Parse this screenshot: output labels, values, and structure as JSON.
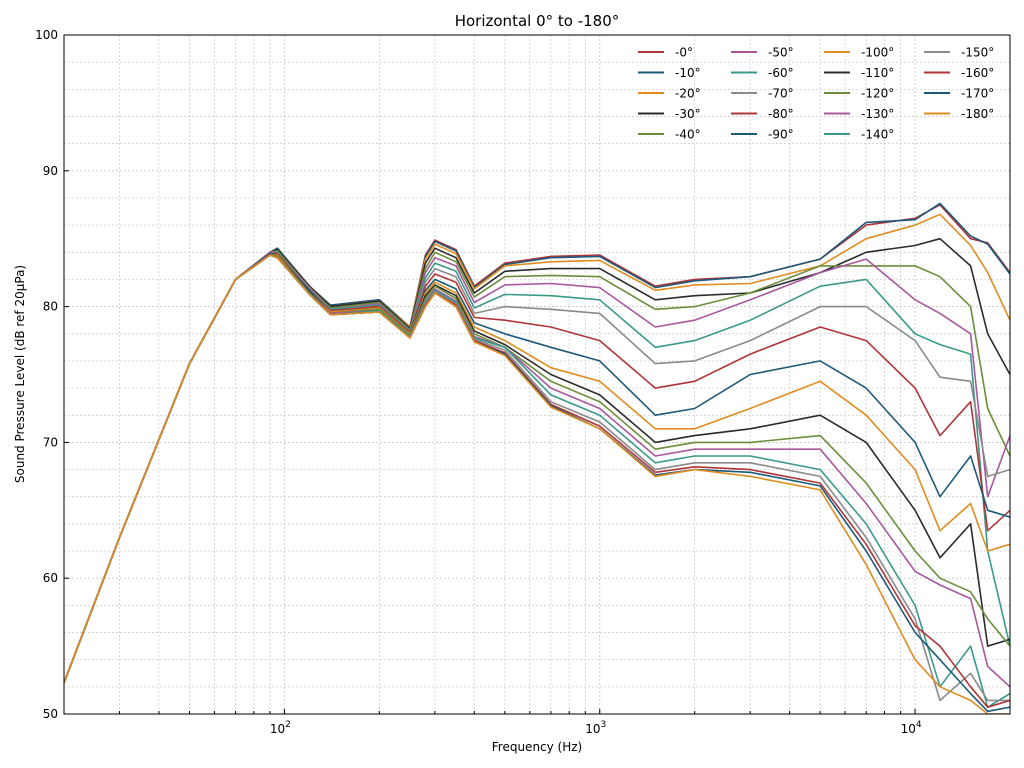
{
  "chart_data": {
    "type": "line",
    "title": "Horizontal 0° to -180°",
    "xlabel": "Frequency (Hz)",
    "ylabel": "Sound Pressure Level (dB ref 20µPa)",
    "xscale": "log",
    "xlim": [
      20,
      20000
    ],
    "ylim": [
      50,
      100
    ],
    "yticks": [
      50,
      60,
      70,
      80,
      90,
      100
    ],
    "xtick_labels": [
      {
        "value": 100,
        "base": "10",
        "exp": "2"
      },
      {
        "value": 1000,
        "base": "10",
        "exp": "3"
      },
      {
        "value": 10000,
        "base": "10",
        "exp": "4"
      }
    ],
    "grid": true,
    "legend": {
      "placement": "top-right",
      "columns": 4
    },
    "x": [
      20,
      30,
      50,
      70,
      90,
      95,
      120,
      140,
      200,
      250,
      280,
      300,
      350,
      400,
      500,
      700,
      1000,
      1500,
      2000,
      3000,
      5000,
      7000,
      10000,
      12000,
      15000,
      17000,
      20000
    ],
    "series": [
      {
        "name": "-0°",
        "color": "#b03538",
        "values": [
          52.3,
          63.0,
          75.8,
          82.0,
          84.0,
          84.3,
          81.5,
          80.1,
          80.5,
          78.5,
          83.8,
          84.9,
          84.2,
          81.5,
          83.2,
          83.7,
          83.8,
          81.5,
          82.0,
          82.2,
          83.5,
          86.0,
          86.5,
          87.5,
          85.0,
          84.7,
          82.5
        ]
      },
      {
        "name": "-10°",
        "color": "#1d5a7a",
        "values": [
          52.3,
          63.0,
          75.8,
          82.0,
          84.0,
          84.3,
          81.5,
          80.1,
          80.5,
          78.5,
          83.7,
          84.8,
          84.1,
          81.4,
          83.1,
          83.6,
          83.7,
          81.4,
          81.9,
          82.2,
          83.5,
          86.2,
          86.4,
          87.6,
          85.2,
          84.6,
          82.4
        ]
      },
      {
        "name": "-20°",
        "color": "#e08c1f",
        "values": [
          52.3,
          63.0,
          75.8,
          82.0,
          84.0,
          84.2,
          81.5,
          80.0,
          80.4,
          78.5,
          83.5,
          84.6,
          83.9,
          81.3,
          83.0,
          83.3,
          83.4,
          81.2,
          81.6,
          81.7,
          83.0,
          85.0,
          86.0,
          86.8,
          84.5,
          82.5,
          79.0
        ]
      },
      {
        "name": "-30°",
        "color": "#2b2b2b",
        "values": [
          52.3,
          63.0,
          75.8,
          82.0,
          84.0,
          84.2,
          81.5,
          80.0,
          80.4,
          78.4,
          83.2,
          84.3,
          83.6,
          81.0,
          82.6,
          82.8,
          82.8,
          80.5,
          80.8,
          81.0,
          82.5,
          84.0,
          84.5,
          85.0,
          83.0,
          78.0,
          75.0
        ]
      },
      {
        "name": "-40°",
        "color": "#6b8e3a",
        "values": [
          52.3,
          63.0,
          75.8,
          82.0,
          84.0,
          84.1,
          81.4,
          79.9,
          80.3,
          78.3,
          82.8,
          84.0,
          83.3,
          80.7,
          82.2,
          82.3,
          82.2,
          79.8,
          80.0,
          81.0,
          83.0,
          83.0,
          83.0,
          82.2,
          80.0,
          72.5,
          69.0
        ]
      },
      {
        "name": "-50°",
        "color": "#a9589e",
        "values": [
          52.3,
          63.0,
          75.8,
          82.0,
          84.0,
          84.0,
          81.4,
          79.8,
          80.2,
          78.2,
          82.5,
          83.6,
          83.0,
          80.3,
          81.6,
          81.7,
          81.4,
          78.5,
          79.0,
          80.5,
          82.5,
          83.5,
          80.5,
          79.5,
          78.0,
          66.0,
          70.5
        ]
      },
      {
        "name": "-60°",
        "color": "#3a9a8a",
        "values": [
          52.3,
          63.0,
          75.8,
          82.0,
          83.9,
          84.0,
          81.3,
          79.8,
          80.1,
          78.2,
          82.1,
          83.2,
          82.6,
          79.9,
          80.9,
          80.8,
          80.5,
          77.0,
          77.5,
          79.0,
          81.5,
          82.0,
          78.0,
          77.2,
          76.5,
          62.0,
          55.0
        ]
      },
      {
        "name": "-70°",
        "color": "#8a8a8a",
        "values": [
          52.3,
          63.0,
          75.8,
          82.0,
          83.9,
          83.9,
          81.3,
          79.7,
          80.0,
          78.1,
          81.8,
          82.8,
          82.2,
          79.5,
          80.0,
          79.8,
          79.5,
          75.8,
          76.0,
          77.5,
          80.0,
          80.0,
          77.5,
          74.8,
          74.5,
          67.5,
          68.0
        ]
      },
      {
        "name": "-80°",
        "color": "#b03538",
        "values": [
          52.3,
          63.0,
          75.8,
          82.0,
          83.9,
          83.9,
          81.2,
          79.7,
          80.0,
          78.1,
          81.5,
          82.4,
          81.8,
          79.2,
          79.0,
          78.5,
          77.5,
          74.0,
          74.5,
          76.5,
          78.5,
          77.5,
          74.0,
          70.5,
          73.0,
          63.5,
          65.0
        ]
      },
      {
        "name": "-90°",
        "color": "#1d5a7a",
        "values": [
          52.3,
          63.0,
          75.8,
          82.0,
          83.9,
          83.8,
          81.2,
          79.6,
          79.9,
          78.0,
          81.2,
          82.0,
          81.3,
          78.8,
          78.0,
          77.0,
          76.0,
          72.0,
          72.5,
          75.0,
          76.0,
          74.0,
          70.0,
          66.0,
          69.0,
          65.0,
          64.5
        ]
      },
      {
        "name": "-100°",
        "color": "#e08c1f",
        "values": [
          52.3,
          63.0,
          75.8,
          82.0,
          83.8,
          83.8,
          81.1,
          79.6,
          79.9,
          78.0,
          81.0,
          81.8,
          81.0,
          78.5,
          77.5,
          75.5,
          74.5,
          71.0,
          71.0,
          72.5,
          74.5,
          72.0,
          68.0,
          63.5,
          65.5,
          62.0,
          62.5
        ]
      },
      {
        "name": "-110°",
        "color": "#2b2b2b",
        "values": [
          52.3,
          63.0,
          75.8,
          82.0,
          83.8,
          83.7,
          81.1,
          79.5,
          79.8,
          77.9,
          80.8,
          81.6,
          80.8,
          78.2,
          77.2,
          75.0,
          73.5,
          70.0,
          70.5,
          71.0,
          72.0,
          70.0,
          65.0,
          61.5,
          64.0,
          55.0,
          55.5
        ]
      },
      {
        "name": "-120°",
        "color": "#6b8e3a",
        "values": [
          52.3,
          63.0,
          75.8,
          82.0,
          83.8,
          83.7,
          81.0,
          79.5,
          79.8,
          77.9,
          80.6,
          81.5,
          80.6,
          78.0,
          77.0,
          74.5,
          73.0,
          69.5,
          70.0,
          70.0,
          70.5,
          67.0,
          62.0,
          60.0,
          59.0,
          57.0,
          55.0
        ]
      },
      {
        "name": "-130°",
        "color": "#a9589e",
        "values": [
          52.3,
          63.0,
          75.8,
          82.0,
          83.8,
          83.6,
          81.0,
          79.5,
          79.7,
          77.8,
          80.4,
          81.3,
          80.4,
          77.8,
          77.0,
          74.0,
          72.5,
          69.0,
          69.5,
          69.5,
          69.5,
          65.5,
          60.5,
          59.5,
          58.5,
          53.5,
          52.0
        ]
      },
      {
        "name": "-140°",
        "color": "#3a9a8a",
        "values": [
          52.3,
          63.0,
          75.8,
          82.0,
          83.8,
          83.6,
          81.0,
          79.4,
          79.7,
          77.8,
          80.3,
          81.2,
          80.3,
          77.7,
          77.0,
          73.5,
          72.0,
          68.5,
          69.0,
          69.0,
          68.0,
          64.0,
          58.0,
          52.0,
          55.0,
          50.5,
          51.5
        ]
      },
      {
        "name": "-150°",
        "color": "#8a8a8a",
        "values": [
          52.3,
          63.0,
          75.8,
          82.0,
          83.8,
          83.6,
          80.9,
          79.4,
          79.6,
          77.7,
          80.2,
          81.1,
          80.2,
          77.6,
          76.8,
          73.0,
          71.5,
          68.0,
          68.5,
          68.5,
          67.5,
          63.0,
          57.0,
          51.0,
          53.0,
          51.0,
          51.0
        ]
      },
      {
        "name": "-160°",
        "color": "#b03538",
        "values": [
          52.3,
          63.0,
          75.8,
          82.0,
          83.8,
          83.6,
          80.9,
          79.4,
          79.6,
          77.7,
          80.1,
          81.0,
          80.1,
          77.5,
          76.6,
          72.8,
          71.2,
          67.8,
          68.2,
          68.0,
          67.0,
          62.5,
          56.5,
          55.0,
          52.0,
          50.5,
          51.0
        ]
      },
      {
        "name": "-170°",
        "color": "#1d5a7a",
        "values": [
          52.3,
          63.0,
          75.8,
          82.0,
          83.8,
          83.6,
          80.9,
          79.4,
          79.6,
          77.7,
          80.0,
          81.0,
          80.0,
          77.4,
          76.5,
          72.7,
          71.0,
          67.6,
          68.0,
          67.8,
          66.8,
          62.0,
          56.0,
          54.0,
          51.5,
          50.2,
          50.5
        ]
      },
      {
        "name": "-180°",
        "color": "#e08c1f",
        "values": [
          52.3,
          63.0,
          75.8,
          82.0,
          83.8,
          83.6,
          80.9,
          79.4,
          79.6,
          77.7,
          80.0,
          81.0,
          80.0,
          77.4,
          76.4,
          72.6,
          71.0,
          67.5,
          68.0,
          67.5,
          66.5,
          61.0,
          54.0,
          52.0,
          51.0,
          50.0,
          50.0
        ]
      }
    ]
  }
}
